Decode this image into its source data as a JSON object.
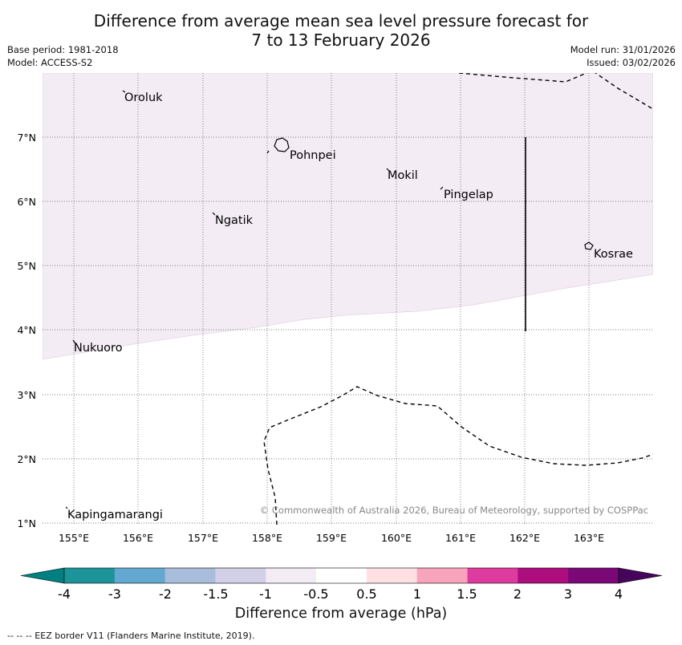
{
  "title": {
    "line1": "Difference from average mean sea level pressure forecast for",
    "line2": "7 to 13 February 2026"
  },
  "meta": {
    "base_period": "Base period: 1981-2018",
    "model": "Model: ACCESS-S2",
    "model_run": "Model run: 31/01/2026",
    "issued": "Issued: 03/02/2026"
  },
  "map": {
    "lat_labels": [
      "7°N",
      "6°N",
      "5°N",
      "4°N",
      "3°N",
      "2°N",
      "1°N"
    ],
    "lon_labels": [
      "155°E",
      "156°E",
      "157°E",
      "158°E",
      "159°E",
      "160°E",
      "161°E",
      "162°E",
      "163°E"
    ],
    "places": [
      "Oroluk",
      "Pohnpei",
      "Mokil",
      "Pingelap",
      "Ngatik",
      "Kosrae",
      "Nukuoro",
      "Kapingamarangi"
    ],
    "anomaly_region_color": "#f4ecf5",
    "copyright": "© Commonwealth of Australia 2026, Bureau of Meteorology, supported by COSPPac"
  },
  "colorbar": {
    "ticks": [
      "-4",
      "-3",
      "-2",
      "-1.5",
      "-1",
      "-0.5",
      "0.5",
      "1",
      "1.5",
      "2",
      "3",
      "4"
    ],
    "colors": [
      "#008080",
      "#1c9499",
      "#62a8d0",
      "#a8bcdc",
      "#d2d0e6",
      "#f4ecf5",
      "#ffffff",
      "#ffe0e2",
      "#f8a4bc",
      "#dd3c9e",
      "#ae0d7e",
      "#7a0877",
      "#46045d"
    ],
    "label": "Difference from average (hPa)"
  },
  "footnote": "--  --  -- EEZ border V11 (Flanders Marine Institute, 2019)."
}
